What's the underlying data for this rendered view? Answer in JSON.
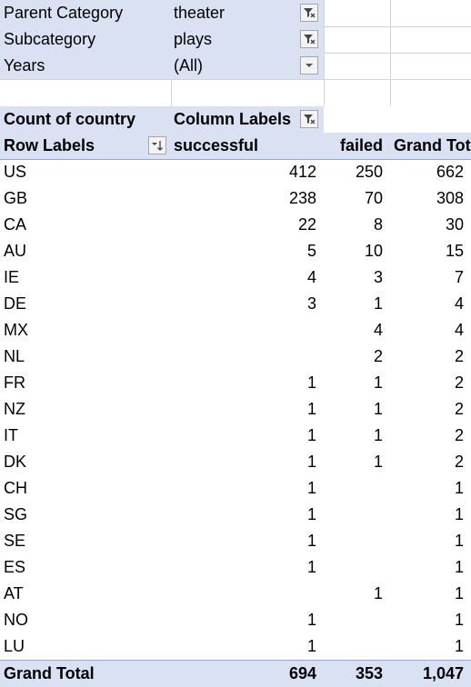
{
  "filters": [
    {
      "field": "Parent Category",
      "value": "theater",
      "button": "filter-applied-icon"
    },
    {
      "field": "Subcategory",
      "value": "plays",
      "button": "filter-applied-icon"
    },
    {
      "field": "Years",
      "value": "(All)",
      "button": "dropdown-arrow-icon"
    }
  ],
  "pivot": {
    "value_label": "Count of country",
    "column_labels": "Column Labels",
    "row_labels": "Row Labels",
    "col_successful": "successful",
    "col_failed": "failed",
    "col_grand_total": "Grand Total",
    "rows": [
      {
        "label": "US",
        "successful": "412",
        "failed": "250",
        "total": "662"
      },
      {
        "label": "GB",
        "successful": "238",
        "failed": "70",
        "total": "308"
      },
      {
        "label": "CA",
        "successful": "22",
        "failed": "8",
        "total": "30"
      },
      {
        "label": "AU",
        "successful": "5",
        "failed": "10",
        "total": "15"
      },
      {
        "label": "IE",
        "successful": "4",
        "failed": "3",
        "total": "7"
      },
      {
        "label": "DE",
        "successful": "3",
        "failed": "1",
        "total": "4"
      },
      {
        "label": "MX",
        "successful": "",
        "failed": "4",
        "total": "4"
      },
      {
        "label": "NL",
        "successful": "",
        "failed": "2",
        "total": "2"
      },
      {
        "label": "FR",
        "successful": "1",
        "failed": "1",
        "total": "2"
      },
      {
        "label": "NZ",
        "successful": "1",
        "failed": "1",
        "total": "2"
      },
      {
        "label": "IT",
        "successful": "1",
        "failed": "1",
        "total": "2"
      },
      {
        "label": "DK",
        "successful": "1",
        "failed": "1",
        "total": "2"
      },
      {
        "label": "CH",
        "successful": "1",
        "failed": "",
        "total": "1"
      },
      {
        "label": "SG",
        "successful": "1",
        "failed": "",
        "total": "1"
      },
      {
        "label": "SE",
        "successful": "1",
        "failed": "",
        "total": "1"
      },
      {
        "label": "ES",
        "successful": "1",
        "failed": "",
        "total": "1"
      },
      {
        "label": "AT",
        "successful": "",
        "failed": "1",
        "total": "1"
      },
      {
        "label": "NO",
        "successful": "1",
        "failed": "",
        "total": "1"
      },
      {
        "label": "LU",
        "successful": "1",
        "failed": "",
        "total": "1"
      }
    ],
    "grand_total": {
      "label": "Grand Total",
      "successful": "694",
      "failed": "353",
      "total": "1,047"
    }
  },
  "colors": {
    "header_band": "#d9e1f2",
    "header_border": "#8ea9db",
    "gridline": "#d4d4d4"
  }
}
